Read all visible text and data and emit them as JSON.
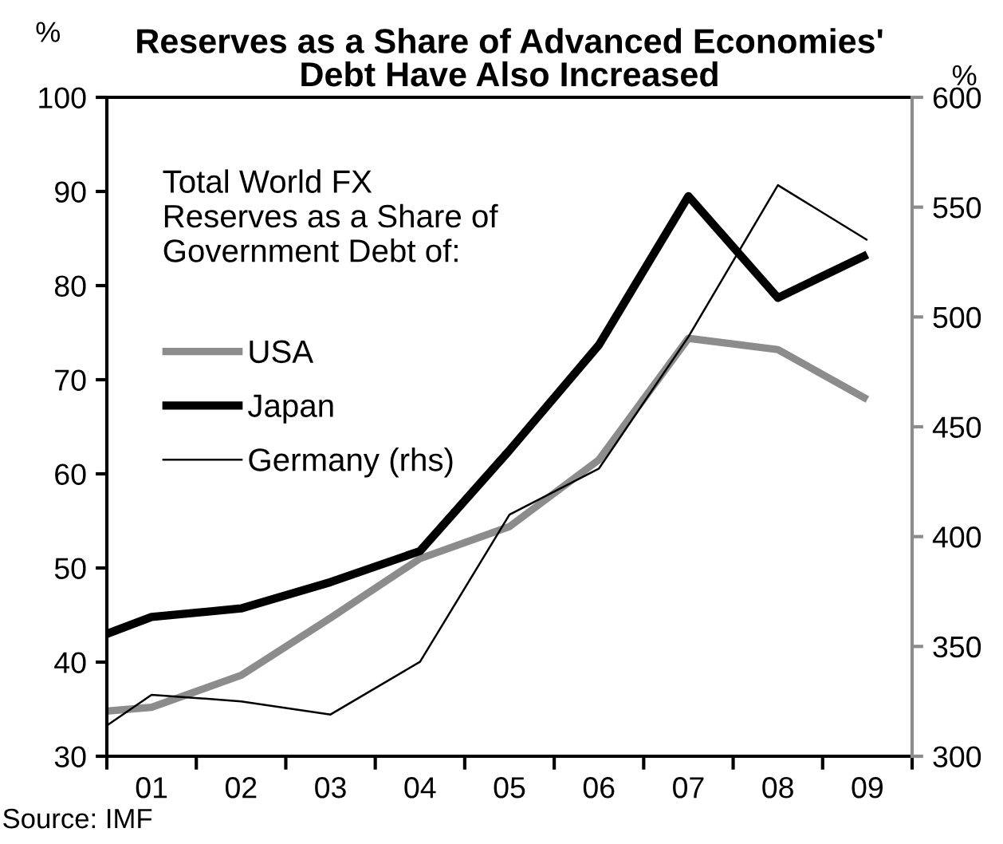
{
  "chart_data": {
    "type": "line",
    "title": "Reserves as a Share of Advanced Economies'\nDebt Have Also Increased",
    "ylabel": "%",
    "y2label": "%",
    "legend_title": "Total World FX\nReserves as a Share of\nGovernment Debt of:",
    "annotations": [
      "Source: IMF"
    ],
    "x": [
      2000.5,
      2001,
      2002,
      2003,
      2004,
      2005,
      2006,
      2007,
      2008,
      2009
    ],
    "xlim": [
      2000.5,
      2009.5
    ],
    "xticks": [
      {
        "value": 2000.5,
        "label": null
      },
      {
        "value": 2001,
        "label": "01"
      },
      {
        "value": 2001.5,
        "label": null
      },
      {
        "value": 2002,
        "label": "02"
      },
      {
        "value": 2002.5,
        "label": null
      },
      {
        "value": 2003,
        "label": "03"
      },
      {
        "value": 2003.5,
        "label": null
      },
      {
        "value": 2004,
        "label": "04"
      },
      {
        "value": 2004.5,
        "label": null
      },
      {
        "value": 2005,
        "label": "05"
      },
      {
        "value": 2005.5,
        "label": null
      },
      {
        "value": 2006,
        "label": "06"
      },
      {
        "value": 2006.5,
        "label": null
      },
      {
        "value": 2007,
        "label": "07"
      },
      {
        "value": 2007.5,
        "label": null
      },
      {
        "value": 2008,
        "label": "08"
      },
      {
        "value": 2008.5,
        "label": null
      },
      {
        "value": 2009,
        "label": "09"
      },
      {
        "value": 2009.5,
        "label": null
      }
    ],
    "ylim": [
      30,
      100
    ],
    "yticks": [
      30,
      40,
      50,
      60,
      70,
      80,
      90,
      100
    ],
    "y2lim": [
      300,
      600
    ],
    "y2ticks": [
      300,
      350,
      400,
      450,
      500,
      550,
      600
    ],
    "series": [
      {
        "name": "USA",
        "color": "#8c8c8c",
        "values": [
          34.8,
          35.2,
          38.6,
          44.7,
          51.0,
          54.4,
          61.5,
          74.4,
          73.2,
          67.9
        ]
      },
      {
        "name": "Japan",
        "color": "#000000",
        "values": [
          43.0,
          44.8,
          45.7,
          48.5,
          51.8,
          62.5,
          73.7,
          89.5,
          78.7,
          83.3
        ]
      },
      {
        "name": "Germany (rhs)",
        "color": "#000000",
        "axis": "y2",
        "values": [
          314,
          328,
          325,
          319,
          343,
          410,
          431,
          491,
          560,
          535
        ]
      }
    ],
    "legend": "top left",
    "marker": "none",
    "line_style": "solid"
  }
}
